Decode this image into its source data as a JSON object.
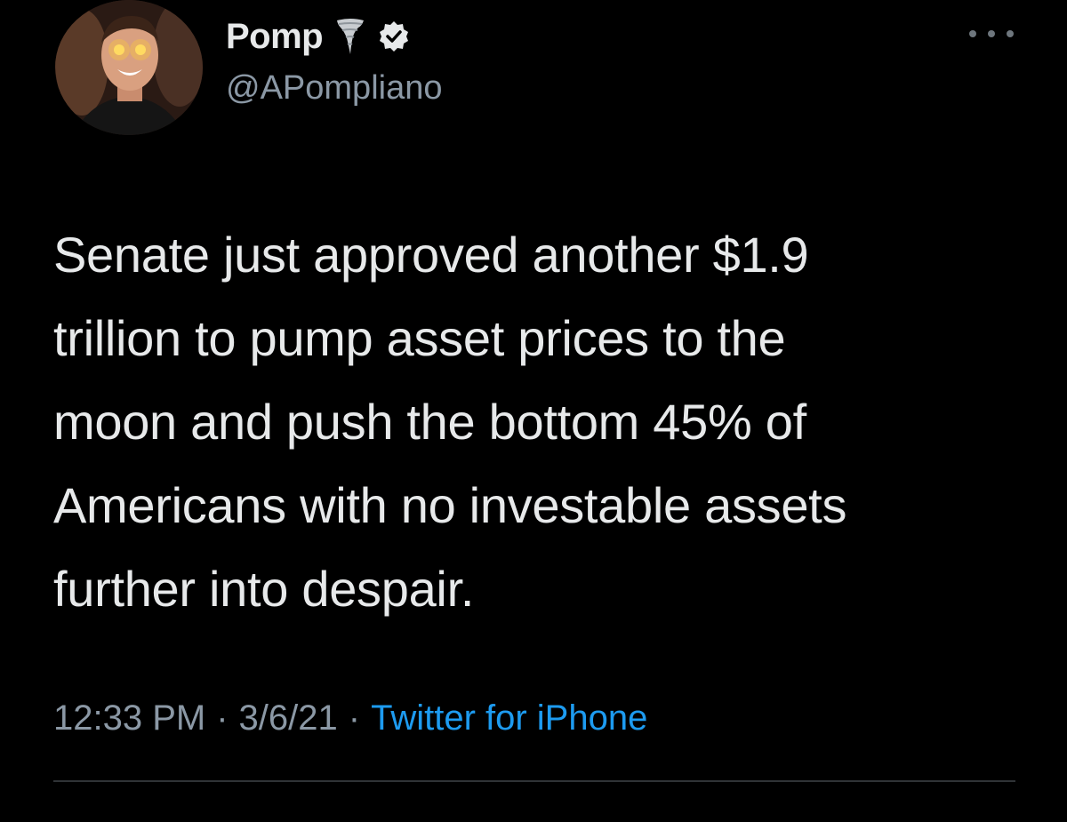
{
  "author": {
    "display_name": "Pomp",
    "handle": "@APompliano",
    "name_icons": [
      "tornado-icon",
      "verified-icon"
    ]
  },
  "tweet": {
    "text": "Senate just approved another $1.9\ntrillion to pump asset prices to the\nmoon and push the bottom 45% of\nAmericans with no investable assets\nfurther into despair.",
    "time": "12:33 PM",
    "separator": "·",
    "date": "3/6/21",
    "source": "Twitter for iPhone"
  },
  "colors": {
    "background": "#000000",
    "text": "#e7e9ea",
    "secondary": "#8b98a5",
    "link": "#1d9bf0",
    "divider": "#2f3336"
  }
}
